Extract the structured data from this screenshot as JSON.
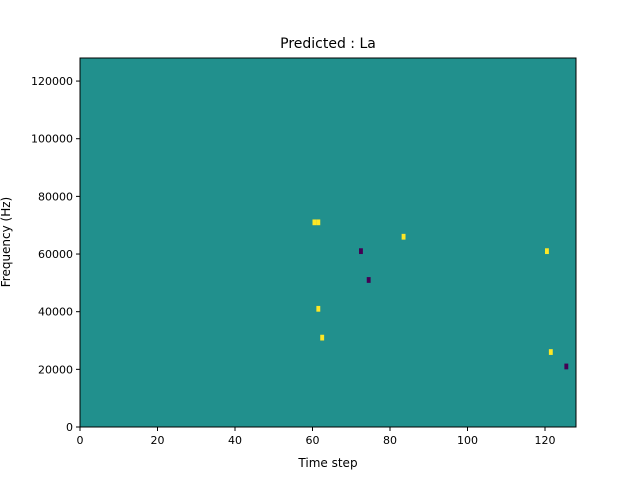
{
  "chart_data": {
    "type": "heatmap",
    "title": "Predicted : La",
    "xlabel": "Time step",
    "ylabel": "Frequency (Hz)",
    "xlim": [
      0,
      128
    ],
    "ylim": [
      0,
      128000
    ],
    "x_ticks": [
      0,
      20,
      40,
      60,
      80,
      100,
      120
    ],
    "y_ticks": [
      0,
      20000,
      40000,
      60000,
      80000,
      100000,
      120000
    ],
    "x_tick_labels": [
      "0",
      "20",
      "40",
      "60",
      "80",
      "100",
      "120"
    ],
    "y_tick_labels": [
      "0",
      "20000",
      "40000",
      "60000",
      "80000",
      "100000",
      "120000"
    ],
    "grid": false,
    "colormap": "viridis",
    "colors": {
      "background": "#21908d",
      "high": "#fde725",
      "low": "#440154"
    },
    "bin_width_hz": 2000,
    "cell_value_levels": [
      -1,
      0,
      1
    ],
    "nonzero_cells": [
      {
        "t": 60,
        "f_hz": 70000,
        "v": 1
      },
      {
        "t": 61,
        "f_hz": 70000,
        "v": 1
      },
      {
        "t": 61,
        "f_hz": 40000,
        "v": 1
      },
      {
        "t": 62,
        "f_hz": 30000,
        "v": 1
      },
      {
        "t": 72,
        "f_hz": 60000,
        "v": -1
      },
      {
        "t": 74,
        "f_hz": 50000,
        "v": -1
      },
      {
        "t": 83,
        "f_hz": 65000,
        "v": 1
      },
      {
        "t": 120,
        "f_hz": 60000,
        "v": 1
      },
      {
        "t": 121,
        "f_hz": 25000,
        "v": 1
      },
      {
        "t": 125,
        "f_hz": 20000,
        "v": -1
      }
    ]
  }
}
